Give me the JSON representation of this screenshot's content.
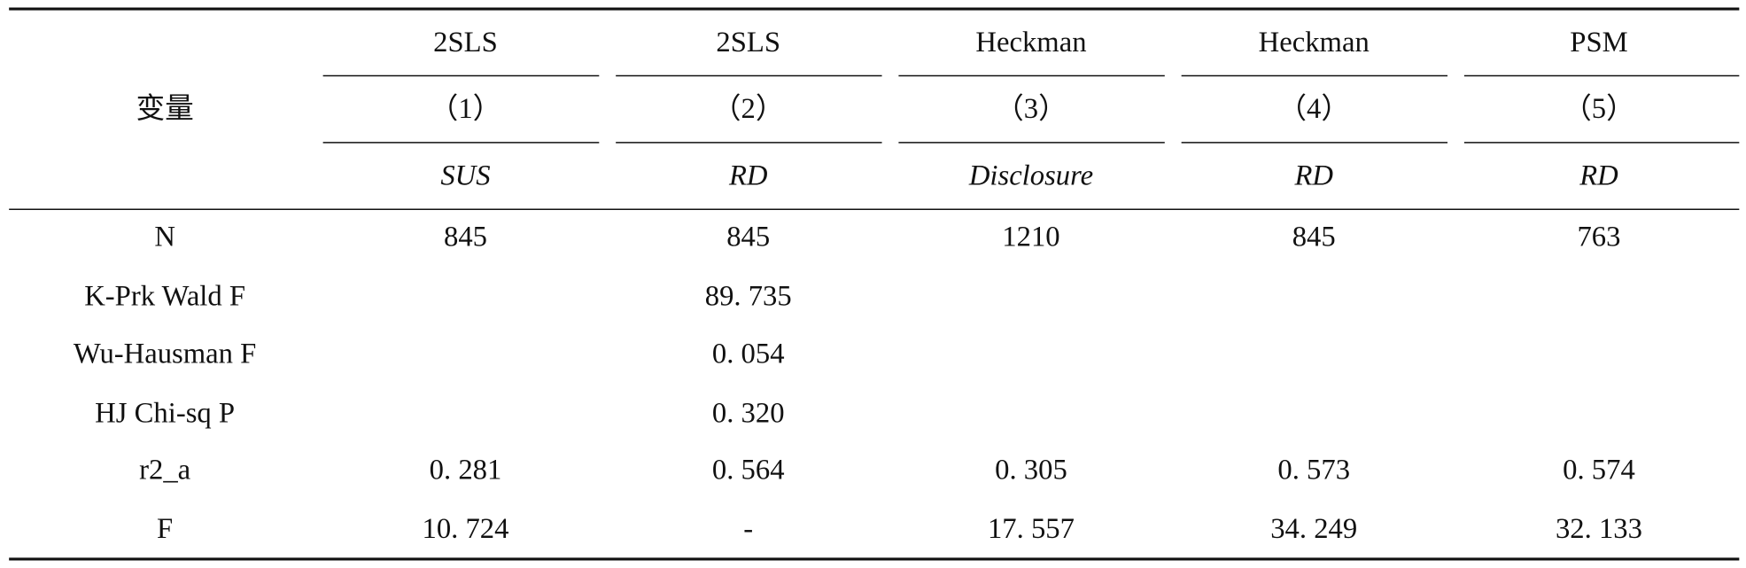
{
  "table": {
    "header": {
      "label": "变量",
      "methods": [
        "2SLS",
        "2SLS",
        "Heckman",
        "Heckman",
        "PSM"
      ],
      "numbers": [
        "（1）",
        "（2）",
        "（3）",
        "（4）",
        "（5）"
      ],
      "dependents": [
        "SUS",
        "RD",
        "Disclosure",
        "RD",
        "RD"
      ]
    },
    "rows": [
      [
        "N",
        "845",
        "845",
        "1210",
        "845",
        "763"
      ],
      [
        "K-Prk Wald F",
        null,
        "89. 735",
        null,
        null,
        null
      ],
      [
        "Wu-Hausman F",
        null,
        "0. 054",
        null,
        null,
        null
      ],
      [
        "HJ Chi-sq P",
        null,
        "0. 320",
        null,
        null,
        null
      ],
      [
        "r2_a",
        "0. 281",
        "0. 564",
        "0. 305",
        "0. 573",
        "0. 574"
      ],
      [
        "F",
        "10. 724",
        "-",
        "17. 557",
        "34. 249",
        "32. 133"
      ]
    ]
  }
}
